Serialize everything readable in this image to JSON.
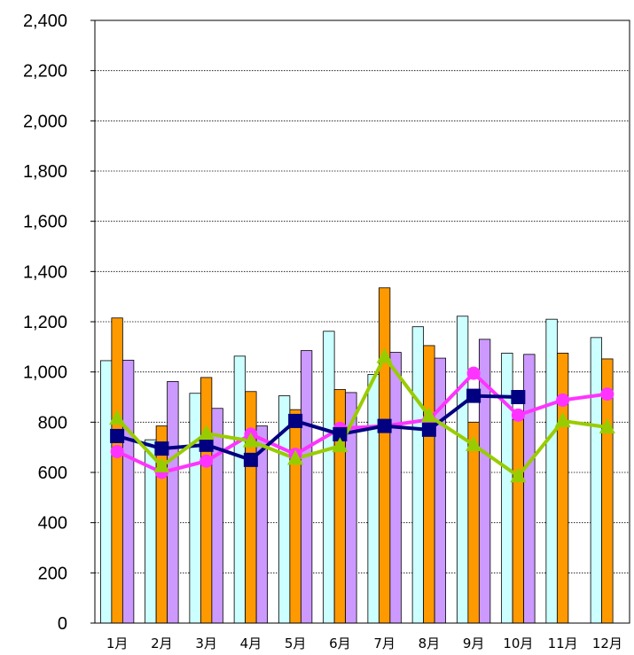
{
  "chart_data": {
    "type": "bar",
    "title": "",
    "xlabel": "",
    "ylabel": "",
    "ylim": [
      0,
      2400
    ],
    "ytick_step": 200,
    "yticks": [
      "0",
      "200",
      "400",
      "600",
      "800",
      "1,000",
      "1,200",
      "1,400",
      "1,600",
      "1,800",
      "2,000",
      "2,200",
      "2,400"
    ],
    "grid": "horizontal-dotted",
    "legend": "none",
    "categories": [
      "1月",
      "2月",
      "3月",
      "4月",
      "5月",
      "6月",
      "7月",
      "8月",
      "9月",
      "10月",
      "11月",
      "12月"
    ],
    "bar_series": [
      {
        "color": "#ccffff",
        "values": [
          1045,
          730,
          915,
          1063,
          905,
          1162,
          990,
          1180,
          1222,
          1075,
          1210,
          1137
        ]
      },
      {
        "color": "#ff9900",
        "values": [
          1215,
          785,
          978,
          922,
          850,
          930,
          1335,
          1105,
          800,
          810,
          1075,
          1052
        ]
      },
      {
        "color": "#cc99ff",
        "values": [
          1047,
          962,
          855,
          785,
          1085,
          918,
          1078,
          1055,
          1130,
          1070,
          null,
          null
        ]
      }
    ],
    "line_series": [
      {
        "color": "#ff33ff",
        "marker": "circle",
        "values": [
          683,
          600,
          645,
          752,
          672,
          775,
          785,
          810,
          995,
          828,
          888,
          912
        ]
      },
      {
        "color": "#000080",
        "marker": "square",
        "values": [
          745,
          695,
          710,
          650,
          805,
          752,
          785,
          770,
          905,
          900,
          null,
          null
        ]
      },
      {
        "color": "#99cc00",
        "marker": "triangle",
        "values": [
          815,
          625,
          755,
          725,
          655,
          705,
          1060,
          825,
          710,
          585,
          805,
          780
        ]
      }
    ]
  }
}
